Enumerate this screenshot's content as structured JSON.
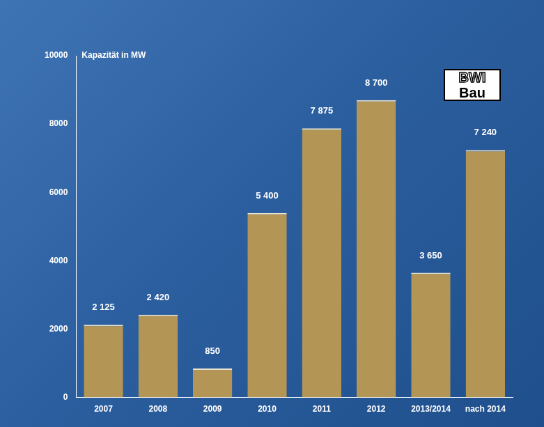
{
  "chart_data": {
    "type": "bar",
    "ylabel": "Kapazität in MW",
    "annotations": [
      "BWI",
      "Bau"
    ],
    "categories": [
      "2007",
      "2008",
      "2009",
      "2010",
      "2011",
      "2012",
      "2013/2014",
      "nach 2014"
    ],
    "values": [
      2125,
      2420,
      850,
      5400,
      7875,
      8700,
      3650,
      7240
    ],
    "value_labels": [
      "2 125",
      "2 420",
      "850",
      "5 400",
      "7 875",
      "8 700",
      "3 650",
      "7 240"
    ],
    "color": "#b39656",
    "ylim": [
      0,
      10000
    ],
    "yticks": [
      0,
      2000,
      4000,
      6000,
      8000,
      10000
    ],
    "grid": false,
    "data_labels": true
  }
}
